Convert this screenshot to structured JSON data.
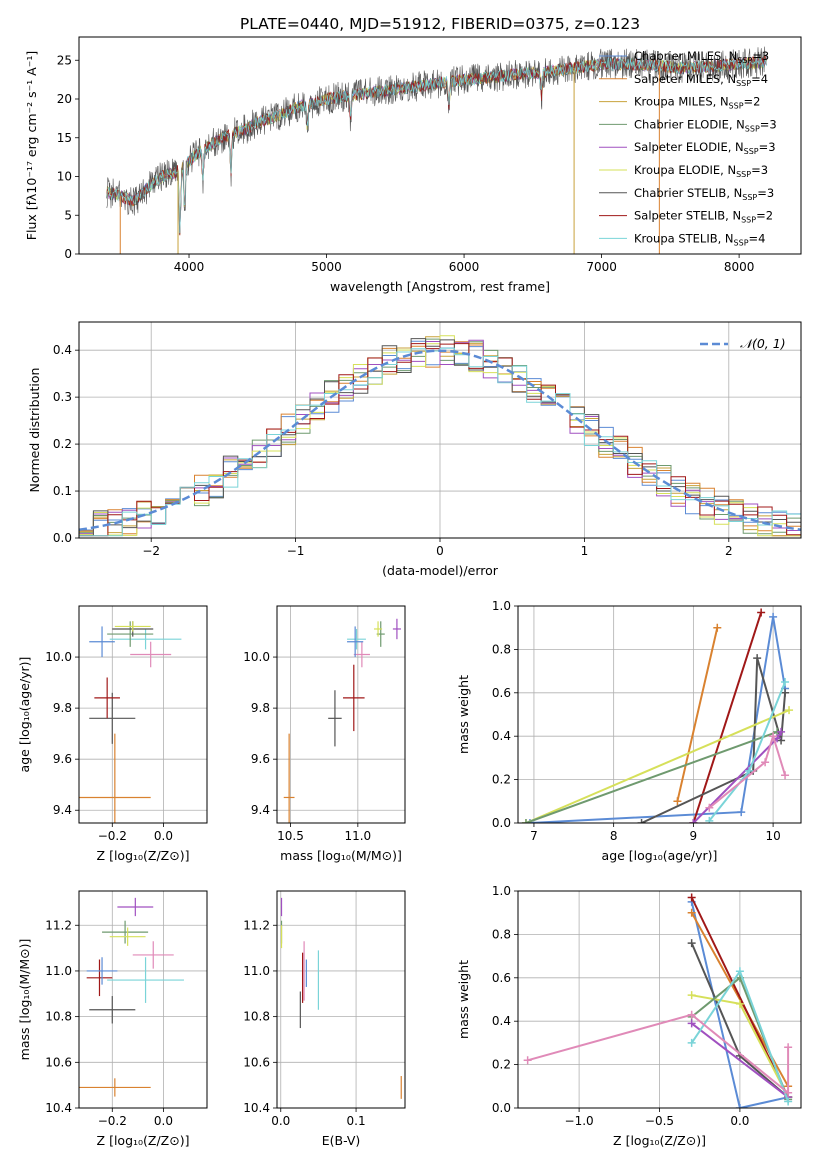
{
  "figure_title": "PLATE=0440, MJD=51912, FIBERID=0375, z=0.123",
  "colors": {
    "miles_chabrier": "#5b8bd5",
    "miles_salpeter": "#d98230",
    "miles_kroupa": "#c8a23b",
    "elodie_chabrier": "#6f9a6f",
    "elodie_salpeter": "#a050c0",
    "elodie_kroupa": "#d6e05a",
    "stelib_chabrier": "#555555",
    "stelib_salpeter": "#a01818",
    "stelib_kroupa": "#7ad4d8",
    "green": "#7ab33a",
    "pink": "#e08ab8",
    "normal": "#5b8bd5"
  },
  "chart_data": [
    {
      "id": "spectrum",
      "type": "line",
      "xlabel": "wavelength [Angstrom, rest frame]",
      "ylabel": "Flux [fλ10⁻¹⁷ erg cm⁻² s⁻¹ A⁻¹]",
      "xlim": [
        3200,
        8450
      ],
      "ylim": [
        0,
        28
      ],
      "xticks": [
        4000,
        5000,
        6000,
        7000,
        8000
      ],
      "yticks": [
        0,
        5,
        10,
        15,
        20,
        25
      ],
      "grid": false,
      "legend": "upper right",
      "continuum": {
        "x": [
          3400,
          3500,
          3600,
          3700,
          3800,
          3900,
          4000,
          4100,
          4200,
          4300,
          4400,
          4500,
          4600,
          4800,
          5000,
          5200,
          5400,
          5600,
          5800,
          6000,
          6200,
          6400,
          6600,
          6800,
          7000,
          7200,
          7400,
          7600,
          7800,
          8000,
          8200
        ],
        "y": [
          8,
          7.5,
          6.8,
          8.5,
          10,
          10.5,
          12,
          13.5,
          14.5,
          15.5,
          16,
          17,
          17.5,
          19,
          20,
          20.5,
          21,
          21.5,
          22,
          22.5,
          22.8,
          23.2,
          23.5,
          24,
          24.5,
          24.5,
          24.3,
          24,
          24.2,
          24.5,
          24.8
        ]
      },
      "legend_entries": [
        {
          "label": "Chabrier MILES, N",
          "sub": "SSP",
          "val": "=3",
          "color": "#5b8bd5"
        },
        {
          "label": "Salpeter MILES, N",
          "sub": "SSP",
          "val": "=4",
          "color": "#d98230"
        },
        {
          "label": "Kroupa MILES, N",
          "sub": "SSP",
          "val": "=2",
          "color": "#c8a23b"
        },
        {
          "label": "Chabrier ELODIE, N",
          "sub": "SSP",
          "val": "=3",
          "color": "#6f9a6f"
        },
        {
          "label": "Salpeter ELODIE, N",
          "sub": "SSP",
          "val": "=3",
          "color": "#a050c0"
        },
        {
          "label": "Kroupa ELODIE, N",
          "sub": "SSP",
          "val": "=3",
          "color": "#d6e05a"
        },
        {
          "label": "Chabrier STELIB, N",
          "sub": "SSP",
          "val": "=3",
          "color": "#555555"
        },
        {
          "label": "Salpeter STELIB, N",
          "sub": "SSP",
          "val": "=2",
          "color": "#a01818"
        },
        {
          "label": "Kroupa STELIB, N",
          "sub": "SSP",
          "val": "=4",
          "color": "#7ad4d8"
        }
      ]
    },
    {
      "id": "residuals",
      "type": "line",
      "xlabel": "(data-model)/error",
      "ylabel": "Normed distribution",
      "xlim": [
        -2.5,
        2.5
      ],
      "ylim": [
        0,
        0.46
      ],
      "xticks": [
        -2,
        -1,
        0,
        1,
        2
      ],
      "yticks": [
        0,
        0.1,
        0.2,
        0.3,
        0.4
      ],
      "xticklabels": [
        "−2",
        "−1",
        "0",
        "1",
        "2"
      ],
      "yticklabels": [
        "0.0",
        "0.1",
        "0.2",
        "0.3",
        "0.4"
      ],
      "grid": true,
      "legend": "upper right",
      "legend_label": "𝒩(0, 1)",
      "bin_width": 0.1
    },
    {
      "id": "age_vs_z",
      "type": "scatter",
      "xlabel": "Z [log₁₀(Z/Z⊙)]",
      "ylabel": "age  [log₁₀(age/yr)]",
      "xlim": [
        -0.33,
        0.17
      ],
      "ylim": [
        9.35,
        10.2
      ],
      "xticks": [
        -0.2,
        0.0
      ],
      "yticks": [
        9.4,
        9.6,
        9.8,
        10.0
      ],
      "xticklabels": [
        "−0.2",
        "0.0"
      ],
      "yticklabels": [
        "9.4",
        "9.6",
        "9.8",
        "10.0"
      ],
      "grid": true,
      "points": [
        {
          "x": -0.19,
          "y": 9.45,
          "xerr": 0.14,
          "yerr": 0.25,
          "color": "#d98230"
        },
        {
          "x": -0.2,
          "y": 9.76,
          "xerr": 0.09,
          "yerr": 0.1,
          "color": "#555555"
        },
        {
          "x": -0.22,
          "y": 9.84,
          "xerr": 0.05,
          "yerr": 0.08,
          "color": "#a01818"
        },
        {
          "x": -0.24,
          "y": 10.06,
          "xerr": 0.05,
          "yerr": 0.06,
          "color": "#5b8bd5"
        },
        {
          "x": -0.05,
          "y": 10.01,
          "xerr": 0.08,
          "yerr": 0.05,
          "color": "#e08ab8"
        },
        {
          "x": -0.07,
          "y": 10.07,
          "xerr": 0.14,
          "yerr": 0.04,
          "color": "#7ad4d8"
        },
        {
          "x": -0.13,
          "y": 10.09,
          "xerr": 0.09,
          "yerr": 0.05,
          "color": "#6f9a6f"
        },
        {
          "x": -0.12,
          "y": 10.11,
          "xerr": 0.08,
          "yerr": 0.03,
          "color": "#555555"
        },
        {
          "x": -0.12,
          "y": 10.12,
          "xerr": 0.07,
          "yerr": 0.02,
          "color": "#d6e05a"
        }
      ]
    },
    {
      "id": "age_vs_mass",
      "type": "scatter",
      "xlabel": "mass [log₁₀(M/M⊙)]",
      "ylabel": "",
      "xlim": [
        10.4,
        11.35
      ],
      "ylim": [
        9.35,
        10.2
      ],
      "xticks": [
        10.5,
        11.0
      ],
      "yticks": [
        9.4,
        9.6,
        9.8,
        10.0
      ],
      "xticklabels": [
        "10.5",
        "11.0"
      ],
      "yticklabels": [
        "9.4",
        "9.6",
        "9.8",
        "10.0"
      ],
      "grid": true,
      "points": [
        {
          "x": 10.49,
          "y": 9.45,
          "xerr": 0.04,
          "yerr": 0.25,
          "color": "#d98230"
        },
        {
          "x": 10.83,
          "y": 9.76,
          "xerr": 0.05,
          "yerr": 0.11,
          "color": "#555555"
        },
        {
          "x": 10.97,
          "y": 9.84,
          "xerr": 0.08,
          "yerr": 0.13,
          "color": "#a01818"
        },
        {
          "x": 11.03,
          "y": 10.01,
          "xerr": 0.06,
          "yerr": 0.05,
          "color": "#e08ab8"
        },
        {
          "x": 10.99,
          "y": 10.07,
          "xerr": 0.07,
          "yerr": 0.04,
          "color": "#7ad4d8"
        },
        {
          "x": 10.98,
          "y": 10.06,
          "xerr": 0.06,
          "yerr": 0.06,
          "color": "#5b8bd5"
        },
        {
          "x": 11.17,
          "y": 10.09,
          "xerr": 0.03,
          "yerr": 0.05,
          "color": "#6f9a6f"
        },
        {
          "x": 11.15,
          "y": 10.11,
          "xerr": 0.03,
          "yerr": 0.03,
          "color": "#d6e05a"
        },
        {
          "x": 11.29,
          "y": 10.11,
          "xerr": 0.03,
          "yerr": 0.04,
          "color": "#a050c0"
        }
      ]
    },
    {
      "id": "weight_vs_age",
      "type": "line",
      "xlabel": "age  [log₁₀(age/yr)]",
      "ylabel": "mass weight",
      "xlim": [
        6.8,
        10.35
      ],
      "ylim": [
        0,
        1
      ],
      "xticks": [
        7,
        8,
        9,
        10
      ],
      "yticks": [
        0,
        0.2,
        0.4,
        0.6,
        0.8,
        1.0
      ],
      "xticklabels": [
        "7",
        "8",
        "9",
        "10"
      ],
      "yticklabels": [
        "0.0",
        "0.2",
        "0.4",
        "0.6",
        "0.8",
        "1.0"
      ],
      "grid": true,
      "series": [
        {
          "color": "#5b8bd5",
          "x": [
            6.95,
            9.6,
            10.0,
            10.15
          ],
          "y": [
            0.0,
            0.05,
            0.95,
            0.62
          ]
        },
        {
          "color": "#d98230",
          "x": [
            8.8,
            9.3
          ],
          "y": [
            0.1,
            0.9
          ]
        },
        {
          "color": "#a01818",
          "x": [
            9.0,
            9.85
          ],
          "y": [
            0.0,
            0.97
          ]
        },
        {
          "color": "#555555",
          "x": [
            8.35,
            9.75,
            9.8,
            10.1,
            10.15
          ],
          "y": [
            0.0,
            0.24,
            0.76,
            0.38,
            0.6
          ]
        },
        {
          "color": "#d6e05a",
          "x": [
            6.9,
            10.2
          ],
          "y": [
            0.0,
            0.52
          ]
        },
        {
          "color": "#6f9a6f",
          "x": [
            6.9,
            10.05
          ],
          "y": [
            0.0,
            0.42
          ]
        },
        {
          "color": "#a050c0",
          "x": [
            9.0,
            10.05,
            10.1
          ],
          "y": [
            0.0,
            0.39,
            0.42
          ]
        },
        {
          "color": "#7ad4d8",
          "x": [
            9.2,
            9.7,
            10.15
          ],
          "y": [
            0.01,
            0.24,
            0.65
          ]
        },
        {
          "color": "#e08ab8",
          "x": [
            9.2,
            9.9,
            10.0,
            10.15
          ],
          "y": [
            0.07,
            0.28,
            0.4,
            0.22
          ]
        }
      ]
    },
    {
      "id": "mass_vs_z",
      "type": "scatter",
      "xlabel": "Z [log₁₀(Z/Z⊙)]",
      "ylabel": "mass [log₁₀(M/M⊙)]",
      "xlim": [
        -0.33,
        0.17
      ],
      "ylim": [
        10.4,
        11.35
      ],
      "xticks": [
        -0.2,
        0.0
      ],
      "yticks": [
        10.4,
        10.6,
        10.8,
        11.0,
        11.2
      ],
      "xticklabels": [
        "−0.2",
        "0.0"
      ],
      "yticklabels": [
        "10.4",
        "10.6",
        "10.8",
        "11.0",
        "11.2"
      ],
      "grid": true,
      "points": [
        {
          "x": -0.19,
          "y": 10.49,
          "xerr": 0.14,
          "yerr": 0.04,
          "color": "#d98230"
        },
        {
          "x": -0.2,
          "y": 10.83,
          "xerr": 0.09,
          "yerr": 0.06,
          "color": "#555555"
        },
        {
          "x": -0.25,
          "y": 10.97,
          "xerr": 0.05,
          "yerr": 0.08,
          "color": "#a01818"
        },
        {
          "x": -0.24,
          "y": 11.0,
          "xerr": 0.06,
          "yerr": 0.06,
          "color": "#5b8bd5"
        },
        {
          "x": -0.04,
          "y": 11.07,
          "xerr": 0.08,
          "yerr": 0.06,
          "color": "#e08ab8"
        },
        {
          "x": -0.07,
          "y": 10.96,
          "xerr": 0.15,
          "yerr": 0.1,
          "color": "#7ad4d8"
        },
        {
          "x": -0.15,
          "y": 11.17,
          "xerr": 0.09,
          "yerr": 0.05,
          "color": "#6f9a6f"
        },
        {
          "x": -0.14,
          "y": 11.15,
          "xerr": 0.07,
          "yerr": 0.04,
          "color": "#d6e05a"
        },
        {
          "x": -0.11,
          "y": 11.28,
          "xerr": 0.07,
          "yerr": 0.04,
          "color": "#a050c0"
        }
      ]
    },
    {
      "id": "mass_vs_ebv",
      "type": "scatter",
      "xlabel": "E(B-V)",
      "ylabel": "",
      "xlim": [
        -0.005,
        0.165
      ],
      "ylim": [
        10.4,
        11.35
      ],
      "xticks": [
        0.0,
        0.1
      ],
      "yticks": [
        10.4,
        10.6,
        10.8,
        11.0,
        11.2
      ],
      "xticklabels": [
        "0.0",
        "0.1"
      ],
      "yticklabels": [
        "10.4",
        "10.6",
        "10.8",
        "11.0",
        "11.2"
      ],
      "grid": true,
      "points": [
        {
          "x": 0.16,
          "y": 10.49,
          "xerr": 0.0,
          "yerr": 0.05,
          "color": "#d98230"
        },
        {
          "x": 0.026,
          "y": 10.83,
          "xerr": 0.0,
          "yerr": 0.08,
          "color": "#555555"
        },
        {
          "x": 0.029,
          "y": 10.97,
          "xerr": 0.0,
          "yerr": 0.11,
          "color": "#a01818"
        },
        {
          "x": 0.031,
          "y": 11.0,
          "xerr": 0.0,
          "yerr": 0.13,
          "color": "#e08ab8"
        },
        {
          "x": 0.034,
          "y": 10.99,
          "xerr": 0.0,
          "yerr": 0.06,
          "color": "#5b8bd5"
        },
        {
          "x": 0.05,
          "y": 10.96,
          "xerr": 0.0,
          "yerr": 0.13,
          "color": "#7ad4d8"
        },
        {
          "x": 0.001,
          "y": 11.17,
          "xerr": 0.0,
          "yerr": 0.05,
          "color": "#6f9a6f"
        },
        {
          "x": 0.001,
          "y": 11.15,
          "xerr": 0.0,
          "yerr": 0.05,
          "color": "#d6e05a"
        },
        {
          "x": 0.001,
          "y": 11.28,
          "xerr": 0.0,
          "yerr": 0.04,
          "color": "#a050c0"
        }
      ]
    },
    {
      "id": "weight_vs_z",
      "type": "line",
      "xlabel": "Z [log₁₀(Z/Z⊙)]",
      "ylabel": "mass weight",
      "xlim": [
        -1.38,
        0.38
      ],
      "ylim": [
        0,
        1
      ],
      "xticks": [
        -1.0,
        -0.5,
        0.0
      ],
      "yticks": [
        0,
        0.2,
        0.4,
        0.6,
        0.8,
        1.0
      ],
      "xticklabels": [
        "−1.0",
        "−0.5",
        "0.0"
      ],
      "yticklabels": [
        "0.0",
        "0.2",
        "0.4",
        "0.6",
        "0.8",
        "1.0"
      ],
      "grid": true,
      "series": [
        {
          "color": "#5b8bd5",
          "x": [
            -0.3,
            0.0,
            0.3
          ],
          "y": [
            0.95,
            0.0,
            0.05
          ]
        },
        {
          "color": "#d98230",
          "x": [
            -0.3,
            0.3
          ],
          "y": [
            0.9,
            0.1
          ]
        },
        {
          "color": "#a01818",
          "x": [
            -0.3,
            0.3
          ],
          "y": [
            0.97,
            0.05
          ]
        },
        {
          "color": "#555555",
          "x": [
            -0.3,
            0.0,
            0.3
          ],
          "y": [
            0.76,
            0.24,
            0.05
          ]
        },
        {
          "color": "#d6e05a",
          "x": [
            -0.3,
            0.0,
            0.3
          ],
          "y": [
            0.52,
            0.48,
            0.05
          ]
        },
        {
          "color": "#6f9a6f",
          "x": [
            -0.3,
            0.0,
            0.3
          ],
          "y": [
            0.42,
            0.6,
            0.04
          ]
        },
        {
          "color": "#a050c0",
          "x": [
            -0.3,
            0.3
          ],
          "y": [
            0.39,
            0.05
          ]
        },
        {
          "color": "#7ad4d8",
          "x": [
            -0.3,
            0.0,
            0.3
          ],
          "y": [
            0.3,
            0.63,
            0.03
          ]
        },
        {
          "color": "#e08ab8",
          "x": [
            -1.32,
            -0.3,
            0.3,
            0.3
          ],
          "y": [
            0.22,
            0.43,
            0.07,
            0.28
          ]
        }
      ]
    }
  ]
}
